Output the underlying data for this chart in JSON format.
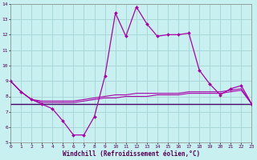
{
  "xlabel": "Windchill (Refroidissement éolien,°C)",
  "background_color": "#c8f0f0",
  "grid_color": "#aad8d8",
  "line_color": "#aa00aa",
  "dark_line_color": "#440066",
  "hours": [
    0,
    1,
    2,
    3,
    4,
    5,
    6,
    7,
    8,
    9,
    10,
    11,
    12,
    13,
    14,
    15,
    16,
    17,
    18,
    19,
    20,
    21,
    22,
    23
  ],
  "temp_line": [
    9.0,
    8.3,
    7.8,
    7.5,
    7.2,
    6.4,
    5.5,
    5.5,
    6.7,
    9.3,
    13.4,
    11.9,
    13.8,
    12.7,
    11.9,
    12.0,
    12.0,
    12.1,
    9.7,
    8.8,
    8.1,
    8.5,
    8.7,
    7.5
  ],
  "line1": [
    9.0,
    8.3,
    7.8,
    7.7,
    7.7,
    7.7,
    7.7,
    7.8,
    7.9,
    8.0,
    8.1,
    8.1,
    8.2,
    8.2,
    8.2,
    8.2,
    8.2,
    8.3,
    8.3,
    8.3,
    8.3,
    8.4,
    8.5,
    7.5
  ],
  "line2": [
    9.0,
    8.3,
    7.8,
    7.6,
    7.6,
    7.6,
    7.6,
    7.7,
    7.8,
    7.9,
    7.9,
    8.0,
    8.0,
    8.0,
    8.1,
    8.1,
    8.1,
    8.2,
    8.2,
    8.2,
    8.2,
    8.3,
    8.4,
    7.5
  ],
  "line3_flat": 7.5,
  "ylim": [
    5,
    14
  ],
  "xlim": [
    0,
    23
  ],
  "yticks": [
    5,
    6,
    7,
    8,
    9,
    10,
    11,
    12,
    13,
    14
  ],
  "xticks": [
    0,
    1,
    2,
    3,
    4,
    5,
    6,
    7,
    8,
    9,
    10,
    11,
    12,
    13,
    14,
    15,
    16,
    17,
    18,
    19,
    20,
    21,
    22,
    23
  ]
}
